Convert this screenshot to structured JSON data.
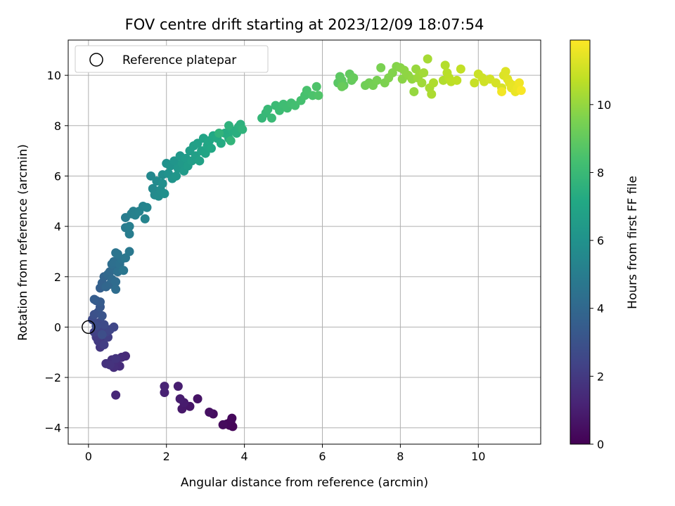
{
  "chart_data": {
    "type": "scatter",
    "title": "FOV centre drift starting at 2023/12/09 18:07:54",
    "xlabel": "Angular distance from reference (arcmin)",
    "ylabel": "Rotation from reference (arcmin)",
    "xlim": [
      -0.52,
      11.6
    ],
    "ylim": [
      -4.65,
      11.4
    ],
    "xticks": [
      0,
      2,
      4,
      6,
      8,
      10
    ],
    "yticks": [
      -4,
      -2,
      0,
      2,
      4,
      6,
      8,
      10
    ],
    "grid": true,
    "colormap": "viridis",
    "colorbar": {
      "label": "Hours from first FF file",
      "range": [
        0,
        11.9
      ],
      "ticks": [
        0,
        2,
        4,
        6,
        8,
        10
      ]
    },
    "legend": {
      "position": "top-left",
      "entries": [
        {
          "label": "Reference platepar",
          "marker": "open-circle"
        }
      ]
    },
    "reference_point": {
      "x": 0,
      "y": 0
    },
    "points": [
      [
        3.62,
        -3.9,
        0.05
      ],
      [
        3.65,
        -3.75,
        0.1
      ],
      [
        3.7,
        -3.95,
        0.15
      ],
      [
        3.55,
        -3.85,
        0.2
      ],
      [
        3.68,
        -3.62,
        0.25
      ],
      [
        3.45,
        -3.88,
        0.3
      ],
      [
        3.2,
        -3.45,
        0.4
      ],
      [
        3.1,
        -3.38,
        0.5
      ],
      [
        2.8,
        -2.85,
        0.6
      ],
      [
        2.6,
        -3.15,
        0.7
      ],
      [
        2.4,
        -3.25,
        0.8
      ],
      [
        2.45,
        -3.0,
        0.9
      ],
      [
        2.35,
        -2.85,
        0.95
      ],
      [
        2.3,
        -2.35,
        1.0
      ],
      [
        1.95,
        -2.6,
        1.1
      ],
      [
        1.95,
        -2.35,
        1.2
      ],
      [
        0.7,
        -2.7,
        1.3
      ],
      [
        0.95,
        -1.15,
        1.4
      ],
      [
        0.85,
        -1.2,
        1.45
      ],
      [
        0.8,
        -1.55,
        1.5
      ],
      [
        0.7,
        -1.35,
        1.55
      ],
      [
        0.65,
        -1.6,
        1.6
      ],
      [
        0.6,
        -1.3,
        1.65
      ],
      [
        0.45,
        -1.45,
        1.7
      ],
      [
        0.55,
        -1.5,
        1.75
      ],
      [
        0.7,
        -1.25,
        1.8
      ],
      [
        0.3,
        -0.8,
        1.9
      ],
      [
        0.35,
        -0.6,
        1.95
      ],
      [
        0.25,
        -0.55,
        2.0
      ],
      [
        0.2,
        -0.4,
        2.05
      ],
      [
        0.3,
        -0.35,
        2.1
      ],
      [
        0.4,
        -0.7,
        2.15
      ],
      [
        0.5,
        -0.4,
        2.2
      ],
      [
        0.15,
        -0.2,
        2.25
      ],
      [
        0.25,
        -0.15,
        2.3
      ],
      [
        0.35,
        -0.1,
        2.35
      ],
      [
        0.45,
        -0.2,
        2.4
      ],
      [
        0.55,
        -0.1,
        2.45
      ],
      [
        0.65,
        0.0,
        2.5
      ],
      [
        0.2,
        0.1,
        2.55
      ],
      [
        0.3,
        0.2,
        2.6
      ],
      [
        0.4,
        0.1,
        2.65
      ],
      [
        0.1,
        0.3,
        2.7
      ],
      [
        0.2,
        0.05,
        2.75
      ],
      [
        0.35,
        -0.3,
        2.8
      ],
      [
        0.15,
        0.5,
        2.9
      ],
      [
        0.25,
        0.6,
        3.0
      ],
      [
        0.35,
        0.45,
        3.1
      ],
      [
        0.3,
        0.8,
        3.2
      ],
      [
        0.2,
        1.05,
        3.3
      ],
      [
        0.3,
        1.0,
        3.4
      ],
      [
        0.15,
        1.1,
        3.5
      ],
      [
        0.3,
        1.55,
        3.6
      ],
      [
        0.35,
        1.75,
        3.7
      ],
      [
        0.4,
        2.0,
        3.8
      ],
      [
        0.45,
        1.6,
        3.9
      ],
      [
        0.55,
        1.7,
        3.95
      ],
      [
        0.5,
        2.1,
        4.0
      ],
      [
        0.55,
        2.2,
        4.05
      ],
      [
        0.6,
        1.9,
        4.1
      ],
      [
        0.65,
        2.3,
        4.15
      ],
      [
        0.7,
        1.8,
        4.2
      ],
      [
        0.7,
        1.5,
        4.25
      ],
      [
        0.6,
        2.5,
        4.3
      ],
      [
        0.65,
        2.6,
        4.35
      ],
      [
        0.75,
        2.2,
        4.4
      ],
      [
        0.8,
        2.5,
        4.45
      ],
      [
        0.85,
        2.7,
        4.5
      ],
      [
        0.7,
        2.95,
        4.55
      ],
      [
        0.75,
        2.9,
        4.6
      ],
      [
        0.9,
        2.25,
        4.65
      ],
      [
        0.95,
        2.75,
        4.7
      ],
      [
        1.05,
        3.0,
        4.75
      ],
      [
        0.95,
        3.95,
        4.9
      ],
      [
        0.95,
        4.35,
        4.95
      ],
      [
        1.05,
        3.7,
        5.0
      ],
      [
        1.05,
        4.0,
        5.05
      ],
      [
        1.1,
        4.5,
        5.1
      ],
      [
        1.15,
        4.6,
        5.15
      ],
      [
        1.2,
        4.45,
        5.2
      ],
      [
        1.3,
        4.6,
        5.25
      ],
      [
        1.4,
        4.8,
        5.3
      ],
      [
        1.45,
        4.3,
        5.35
      ],
      [
        1.5,
        4.75,
        5.4
      ],
      [
        1.6,
        6.0,
        5.5
      ],
      [
        1.65,
        5.5,
        5.55
      ],
      [
        1.7,
        5.25,
        5.6
      ],
      [
        1.75,
        5.8,
        5.65
      ],
      [
        1.8,
        5.2,
        5.7
      ],
      [
        1.85,
        5.45,
        5.75
      ],
      [
        1.9,
        6.05,
        5.8
      ],
      [
        1.9,
        5.7,
        5.85
      ],
      [
        1.95,
        5.3,
        5.9
      ],
      [
        2.0,
        6.5,
        5.95
      ],
      [
        2.05,
        6.1,
        6.0
      ],
      [
        2.1,
        6.4,
        6.05
      ],
      [
        2.15,
        5.9,
        6.1
      ],
      [
        2.2,
        6.6,
        6.15
      ],
      [
        2.25,
        6.0,
        6.2
      ],
      [
        2.3,
        6.3,
        6.25
      ],
      [
        2.35,
        6.8,
        6.3
      ],
      [
        2.4,
        6.5,
        6.35
      ],
      [
        2.45,
        6.2,
        6.4
      ],
      [
        2.5,
        6.7,
        6.45
      ],
      [
        2.55,
        6.4,
        6.5
      ],
      [
        2.6,
        7.0,
        6.55
      ],
      [
        2.65,
        6.6,
        6.6
      ],
      [
        2.7,
        7.2,
        6.65
      ],
      [
        2.75,
        6.8,
        6.7
      ],
      [
        2.8,
        7.3,
        6.75
      ],
      [
        2.85,
        6.6,
        6.8
      ],
      [
        2.9,
        7.0,
        6.85
      ],
      [
        2.95,
        7.5,
        6.9
      ],
      [
        3.0,
        6.9,
        6.95
      ],
      [
        3.05,
        7.2,
        7.0
      ],
      [
        3.1,
        7.4,
        7.05
      ],
      [
        3.15,
        7.1,
        7.1
      ],
      [
        3.2,
        7.6,
        7.15
      ],
      [
        3.3,
        7.5,
        7.2
      ],
      [
        3.4,
        7.3,
        7.25
      ],
      [
        3.5,
        7.7,
        7.3
      ],
      [
        3.6,
        7.5,
        7.35
      ],
      [
        3.7,
        7.8,
        7.4
      ],
      [
        3.8,
        7.7,
        7.45
      ],
      [
        3.85,
        7.95,
        7.5
      ],
      [
        3.9,
        8.05,
        7.55
      ],
      [
        3.6,
        8.0,
        7.6
      ],
      [
        3.95,
        7.85,
        7.65
      ],
      [
        3.35,
        7.7,
        7.7
      ],
      [
        3.65,
        7.4,
        7.75
      ],
      [
        4.45,
        8.3,
        7.85
      ],
      [
        4.55,
        8.5,
        7.9
      ],
      [
        4.6,
        8.65,
        7.95
      ],
      [
        4.7,
        8.3,
        8.0
      ],
      [
        4.8,
        8.8,
        8.05
      ],
      [
        4.9,
        8.6,
        8.1
      ],
      [
        5.0,
        8.85,
        8.15
      ],
      [
        5.1,
        8.7,
        8.2
      ],
      [
        5.2,
        8.9,
        8.25
      ],
      [
        5.3,
        8.8,
        8.3
      ],
      [
        5.45,
        9.0,
        8.35
      ],
      [
        5.55,
        9.2,
        8.4
      ],
      [
        5.6,
        9.4,
        8.45
      ],
      [
        5.75,
        9.2,
        8.5
      ],
      [
        5.85,
        9.55,
        8.55
      ],
      [
        5.9,
        9.2,
        8.6
      ],
      [
        6.4,
        9.7,
        8.8
      ],
      [
        6.45,
        9.95,
        8.85
      ],
      [
        6.5,
        9.8,
        8.9
      ],
      [
        6.55,
        9.6,
        8.95
      ],
      [
        6.7,
        10.05,
        9.0
      ],
      [
        6.75,
        9.8,
        9.05
      ],
      [
        6.8,
        9.9,
        9.1
      ],
      [
        6.5,
        9.55,
        9.15
      ],
      [
        7.1,
        9.6,
        9.3
      ],
      [
        7.2,
        9.7,
        9.35
      ],
      [
        7.3,
        9.6,
        9.4
      ],
      [
        7.4,
        9.8,
        9.45
      ],
      [
        7.5,
        10.3,
        9.5
      ],
      [
        7.6,
        9.7,
        9.55
      ],
      [
        7.7,
        9.9,
        9.6
      ],
      [
        7.8,
        10.1,
        9.65
      ],
      [
        7.9,
        10.35,
        9.7
      ],
      [
        8.0,
        10.3,
        9.75
      ],
      [
        8.05,
        9.85,
        9.8
      ],
      [
        8.1,
        10.2,
        9.85
      ],
      [
        8.2,
        10.0,
        9.9
      ],
      [
        8.3,
        9.85,
        9.95
      ],
      [
        8.35,
        9.35,
        10.0
      ],
      [
        8.4,
        10.25,
        10.05
      ],
      [
        8.45,
        9.9,
        10.1
      ],
      [
        8.5,
        10.05,
        10.15
      ],
      [
        8.55,
        9.7,
        10.2
      ],
      [
        8.6,
        10.1,
        10.25
      ],
      [
        8.7,
        10.65,
        10.3
      ],
      [
        8.75,
        9.5,
        10.35
      ],
      [
        8.8,
        9.25,
        10.4
      ],
      [
        8.85,
        9.7,
        10.45
      ],
      [
        9.1,
        9.8,
        10.5
      ],
      [
        9.15,
        10.4,
        10.55
      ],
      [
        9.2,
        10.1,
        10.6
      ],
      [
        9.25,
        9.9,
        10.65
      ],
      [
        9.3,
        9.75,
        10.7
      ],
      [
        9.45,
        9.8,
        10.75
      ],
      [
        9.55,
        10.25,
        10.8
      ],
      [
        9.9,
        9.7,
        10.9
      ],
      [
        10.0,
        10.05,
        10.95
      ],
      [
        10.1,
        9.9,
        11.0
      ],
      [
        10.15,
        9.75,
        11.05
      ],
      [
        10.3,
        9.85,
        11.1
      ],
      [
        10.45,
        9.7,
        11.15
      ],
      [
        10.6,
        9.5,
        11.2
      ],
      [
        10.65,
        10.0,
        11.25
      ],
      [
        10.7,
        10.15,
        11.3
      ],
      [
        10.75,
        9.85,
        11.35
      ],
      [
        10.8,
        9.7,
        11.4
      ],
      [
        10.85,
        9.5,
        11.45
      ],
      [
        10.9,
        9.6,
        11.5
      ],
      [
        10.95,
        9.35,
        11.55
      ],
      [
        11.0,
        9.5,
        11.6
      ],
      [
        11.05,
        9.7,
        11.65
      ],
      [
        10.6,
        9.35,
        11.7
      ],
      [
        11.1,
        9.4,
        11.8
      ]
    ]
  }
}
